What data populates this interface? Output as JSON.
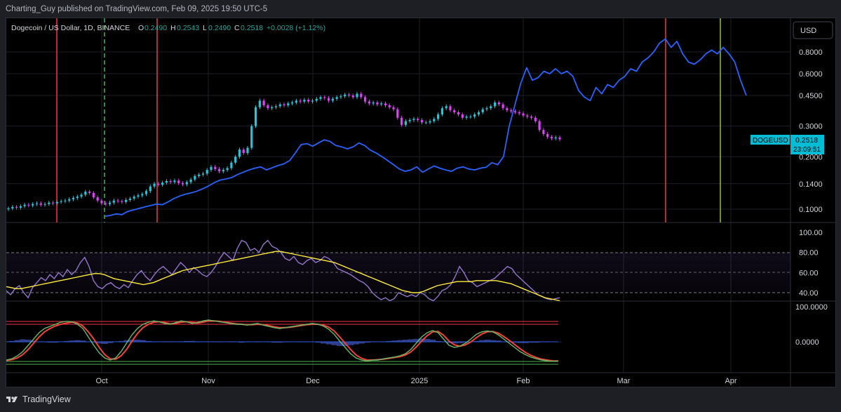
{
  "publisher": "Charting_Guy published on TradingView.com, Feb 09, 2025 19:50 UTC-5",
  "brand": "TradingView",
  "currency": "USD",
  "chart_data": {
    "type": "candlestick",
    "title": "Dogecoin / US Dollar, 1D, BINANCE",
    "ohlc": {
      "open_label": "O",
      "open": "0.2490",
      "high_label": "H",
      "high": "0.2543",
      "low_label": "L",
      "low": "0.2490",
      "close_label": "C",
      "close": "0.2518",
      "change": "+0.0028 (+1.12%)"
    },
    "symbol_tag": "DOGEUSD",
    "last_price": "0.2518",
    "countdown": "23:09:51",
    "price_scale": "log",
    "price_ticks": [
      "0.8000",
      "0.6000",
      "0.4500",
      "0.3000",
      "0.2000",
      "0.1400",
      "0.1000"
    ],
    "x_labels": [
      "Oct",
      "Nov",
      "Dec",
      "2025",
      "Feb",
      "Mar",
      "Apr"
    ],
    "candles_close": [
      0.101,
      0.103,
      0.102,
      0.104,
      0.106,
      0.105,
      0.107,
      0.108,
      0.106,
      0.107,
      0.109,
      0.108,
      0.11,
      0.111,
      0.112,
      0.114,
      0.116,
      0.118,
      0.121,
      0.126,
      0.124,
      0.117,
      0.112,
      0.108,
      0.107,
      0.109,
      0.112,
      0.111,
      0.11,
      0.113,
      0.115,
      0.118,
      0.12,
      0.122,
      0.127,
      0.135,
      0.14,
      0.138,
      0.142,
      0.145,
      0.143,
      0.146,
      0.141,
      0.139,
      0.143,
      0.148,
      0.155,
      0.158,
      0.16,
      0.168,
      0.175,
      0.17,
      0.165,
      0.168,
      0.172,
      0.185,
      0.2,
      0.22,
      0.21,
      0.225,
      0.3,
      0.385,
      0.42,
      0.395,
      0.38,
      0.385,
      0.39,
      0.4,
      0.395,
      0.405,
      0.41,
      0.42,
      0.415,
      0.425,
      0.415,
      0.42,
      0.43,
      0.44,
      0.435,
      0.42,
      0.43,
      0.44,
      0.445,
      0.455,
      0.45,
      0.44,
      0.46,
      0.44,
      0.415,
      0.405,
      0.41,
      0.4,
      0.405,
      0.395,
      0.385,
      0.375,
      0.335,
      0.305,
      0.32,
      0.325,
      0.33,
      0.325,
      0.315,
      0.315,
      0.32,
      0.33,
      0.35,
      0.38,
      0.39,
      0.37,
      0.36,
      0.35,
      0.335,
      0.34,
      0.34,
      0.35,
      0.36,
      0.375,
      0.38,
      0.39,
      0.41,
      0.4,
      0.38,
      0.37,
      0.365,
      0.36,
      0.355,
      0.345,
      0.34,
      0.335,
      0.32,
      0.285,
      0.27,
      0.26,
      0.255,
      0.258,
      0.252
    ],
    "overlay_line": [
      0.091,
      0.092,
      0.094,
      0.093,
      0.097,
      0.099,
      0.101,
      0.103,
      0.105,
      0.107,
      0.106,
      0.11,
      0.115,
      0.119,
      0.122,
      0.124,
      0.127,
      0.131,
      0.136,
      0.142,
      0.147,
      0.149,
      0.152,
      0.158,
      0.163,
      0.168,
      0.172,
      0.175,
      0.168,
      0.173,
      0.178,
      0.182,
      0.19,
      0.21,
      0.235,
      0.238,
      0.23,
      0.24,
      0.25,
      0.245,
      0.232,
      0.228,
      0.222,
      0.228,
      0.24,
      0.232,
      0.218,
      0.21,
      0.2,
      0.19,
      0.18,
      0.17,
      0.165,
      0.168,
      0.175,
      0.163,
      0.17,
      0.177,
      0.172,
      0.168,
      0.165,
      0.172,
      0.175,
      0.17,
      0.168,
      0.172,
      0.174,
      0.185,
      0.18,
      0.2,
      0.3,
      0.4,
      0.53,
      0.65,
      0.55,
      0.57,
      0.62,
      0.6,
      0.64,
      0.6,
      0.62,
      0.58,
      0.48,
      0.44,
      0.42,
      0.5,
      0.46,
      0.52,
      0.5,
      0.55,
      0.58,
      0.64,
      0.62,
      0.7,
      0.74,
      0.8,
      0.9,
      0.95,
      0.85,
      0.92,
      0.78,
      0.7,
      0.68,
      0.72,
      0.78,
      0.82,
      0.78,
      0.85,
      0.78,
      0.7,
      0.55,
      0.45
    ]
  },
  "rsi_panel": {
    "ticks": [
      "100.00",
      "80.00",
      "60.00",
      "40.00"
    ],
    "rsi": [
      42,
      38,
      44,
      47,
      40,
      35,
      45,
      50,
      55,
      52,
      58,
      54,
      60,
      56,
      63,
      58,
      62,
      70,
      75,
      66,
      52,
      46,
      44,
      48,
      50,
      46,
      44,
      48,
      45,
      52,
      58,
      62,
      56,
      52,
      58,
      63,
      66,
      62,
      58,
      64,
      70,
      66,
      60,
      65,
      62,
      58,
      56,
      60,
      66,
      74,
      80,
      76,
      72,
      84,
      92,
      90,
      82,
      84,
      80,
      88,
      92,
      86,
      84,
      80,
      74,
      72,
      76,
      70,
      68,
      72,
      74,
      70,
      72,
      76,
      74,
      70,
      64,
      62,
      60,
      58,
      55,
      52,
      50,
      46,
      40,
      36,
      33,
      35,
      32,
      34,
      40,
      38,
      36,
      38,
      36,
      40,
      38,
      34,
      32,
      36,
      42,
      44,
      48,
      56,
      66,
      60,
      52,
      50,
      46,
      48,
      50,
      52,
      54,
      58,
      62,
      66,
      64,
      58,
      54,
      50,
      46,
      42,
      38,
      36,
      34,
      33,
      34,
      35
    ],
    "rsi_ma": [
      46,
      45,
      44,
      44,
      45,
      46,
      47,
      48,
      49,
      50,
      51,
      52,
      53,
      54,
      55,
      56,
      57,
      58,
      59,
      59,
      58,
      56,
      54,
      53,
      52,
      51,
      50,
      49,
      48,
      49,
      50,
      52,
      54,
      56,
      58,
      60,
      62,
      63,
      64,
      65,
      66,
      67,
      68,
      69,
      70,
      71,
      72,
      73,
      74,
      75,
      76,
      77,
      78,
      79,
      80,
      81,
      81,
      80,
      79,
      78,
      77,
      76,
      75,
      74,
      73,
      72,
      71,
      70,
      68,
      66,
      64,
      62,
      60,
      58,
      56,
      54,
      52,
      50,
      48,
      46,
      44,
      42,
      41,
      40,
      40,
      41,
      43,
      45,
      47,
      48,
      49,
      50,
      51,
      51,
      51,
      51,
      52,
      52,
      52,
      52,
      52,
      51,
      50,
      49,
      47,
      45,
      43,
      41,
      39,
      37,
      35,
      34,
      33,
      32
    ]
  },
  "oscillator_panel": {
    "ticks": [
      "100.0000",
      "0.0000"
    ],
    "osc_a": [
      0.05,
      0.08,
      0.15,
      0.25,
      0.4,
      0.55,
      0.7,
      0.8,
      0.85,
      0.9,
      0.95,
      0.97,
      0.96,
      0.9,
      0.8,
      0.6,
      0.4,
      0.22,
      0.1,
      0.05,
      0.1,
      0.25,
      0.45,
      0.65,
      0.8,
      0.9,
      0.95,
      0.98,
      0.96,
      0.92,
      0.9,
      0.94,
      0.98,
      0.96,
      0.92,
      0.94,
      0.98,
      1.0,
      0.98,
      0.96,
      0.94,
      0.92,
      0.9,
      0.9,
      0.88,
      0.9,
      0.92,
      0.88,
      0.85,
      0.82,
      0.8,
      0.82,
      0.84,
      0.86,
      0.88,
      0.9,
      0.92,
      0.9,
      0.86,
      0.78,
      0.66,
      0.5,
      0.35,
      0.2,
      0.1,
      0.05,
      0.03,
      0.05,
      0.05,
      0.08,
      0.1,
      0.12,
      0.15,
      0.2,
      0.3,
      0.45,
      0.6,
      0.7,
      0.75,
      0.7,
      0.55,
      0.4,
      0.35,
      0.38,
      0.45,
      0.55,
      0.66,
      0.72,
      0.74,
      0.72,
      0.65,
      0.55,
      0.45,
      0.35,
      0.25,
      0.18,
      0.12,
      0.08,
      0.05,
      0.03,
      0.02,
      0.03
    ],
    "osc_b": [
      0.04,
      0.06,
      0.1,
      0.18,
      0.3,
      0.45,
      0.6,
      0.72,
      0.8,
      0.86,
      0.9,
      0.93,
      0.95,
      0.93,
      0.86,
      0.72,
      0.55,
      0.35,
      0.18,
      0.08,
      0.07,
      0.15,
      0.3,
      0.5,
      0.68,
      0.82,
      0.9,
      0.95,
      0.96,
      0.94,
      0.91,
      0.92,
      0.95,
      0.96,
      0.94,
      0.93,
      0.95,
      0.98,
      0.98,
      0.97,
      0.95,
      0.93,
      0.91,
      0.9,
      0.89,
      0.89,
      0.9,
      0.89,
      0.87,
      0.84,
      0.82,
      0.82,
      0.83,
      0.85,
      0.87,
      0.89,
      0.9,
      0.9,
      0.88,
      0.83,
      0.74,
      0.6,
      0.45,
      0.3,
      0.17,
      0.09,
      0.05,
      0.05,
      0.06,
      0.07,
      0.09,
      0.11,
      0.13,
      0.17,
      0.24,
      0.36,
      0.5,
      0.63,
      0.72,
      0.73,
      0.64,
      0.5,
      0.41,
      0.38,
      0.41,
      0.48,
      0.58,
      0.67,
      0.72,
      0.73,
      0.69,
      0.61,
      0.52,
      0.42,
      0.32,
      0.23,
      0.16,
      0.11,
      0.07,
      0.05,
      0.03,
      0.03
    ],
    "hist": [
      0,
      0.02,
      0.04,
      0.06,
      0.05,
      0.03,
      0.01,
      -0.01,
      -0.02,
      -0.02,
      0.0,
      0.02,
      0.03,
      0.04,
      0.03,
      0.01,
      -0.02,
      -0.04,
      -0.05,
      -0.03,
      0.0,
      0.02,
      0.04,
      0.05,
      0.05,
      0.04,
      0.02,
      0.01,
      0.0,
      -0.01,
      -0.01,
      0.0,
      0.01,
      0.02,
      0.02,
      0.01,
      0.0,
      0.0,
      0.01,
      0.01,
      0.0,
      -0.01,
      -0.01,
      -0.02,
      -0.01,
      0.0,
      0.01,
      0.0,
      -0.01,
      -0.02,
      -0.02,
      -0.01,
      0.0,
      0.0,
      0.01,
      0.01,
      0.0,
      -0.02,
      -0.04,
      -0.06,
      -0.08,
      -0.1,
      -0.1,
      -0.08,
      -0.06,
      -0.04,
      -0.02,
      -0.01,
      0.0,
      0.01,
      0.02,
      0.03,
      0.04,
      0.05,
      0.06,
      0.07,
      0.08,
      0.07,
      0.05,
      0.02,
      -0.01,
      -0.03,
      -0.04,
      -0.03,
      -0.02,
      0.0,
      0.02,
      0.04,
      0.05,
      0.04,
      0.03,
      0.01,
      -0.01,
      -0.02,
      -0.03,
      -0.03,
      -0.02,
      -0.02,
      -0.01,
      -0.01,
      0.0,
      0.0
    ]
  }
}
